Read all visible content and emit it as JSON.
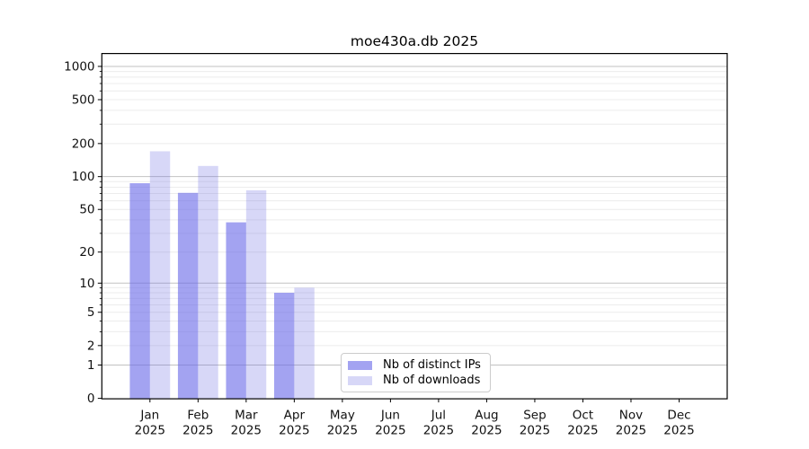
{
  "chart_data": {
    "type": "bar",
    "title": "moe430a.db 2025",
    "categories": [
      "Jan",
      "Feb",
      "Mar",
      "Apr",
      "May",
      "Jun",
      "Jul",
      "Aug",
      "Sep",
      "Oct",
      "Nov",
      "Dec"
    ],
    "x_year_label": "2025",
    "series": [
      {
        "name": "Nb of distinct IPs",
        "values": [
          87,
          71,
          38,
          8,
          0,
          0,
          0,
          0,
          0,
          0,
          0,
          0
        ],
        "color": "rgba(101,101,232,0.60)"
      },
      {
        "name": "Nb of downloads",
        "values": [
          170,
          125,
          75,
          9,
          0,
          0,
          0,
          0,
          0,
          0,
          0,
          0
        ],
        "color": "rgba(101,101,223,0.26)"
      }
    ],
    "y_ticks": [
      0,
      1,
      2,
      5,
      10,
      20,
      50,
      100,
      200,
      500,
      1000
    ],
    "y_scale": "log10(1+v)",
    "ylim": [
      0,
      1320
    ],
    "xlabel": "",
    "ylabel": "",
    "grid": "on",
    "legend_position": "lower-center"
  },
  "colors": {
    "major_gridline": "#c2c2c2",
    "minor_gridline": "#ececec",
    "spine": "#000000",
    "tick_label": "#111111",
    "background": "#ffffff"
  }
}
